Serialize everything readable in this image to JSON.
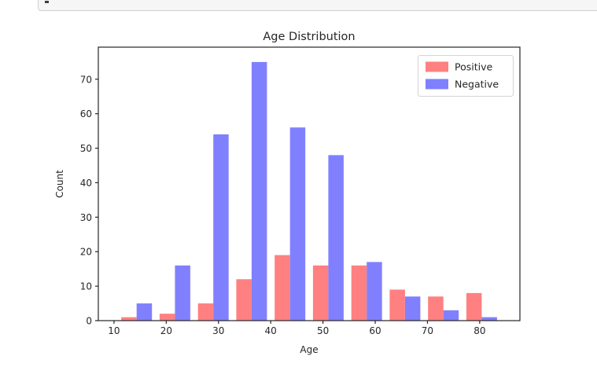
{
  "chart_data": {
    "type": "bar",
    "title": "Age Distribution",
    "xlabel": "Age",
    "ylabel": "Count",
    "bin_start": 10.66,
    "bin_width": 7.34,
    "series": [
      {
        "name": "Positive",
        "color": "#ff8080",
        "values": [
          1,
          2,
          5,
          12,
          19,
          16,
          16,
          9,
          7,
          8
        ]
      },
      {
        "name": "Negative",
        "color": "#8080ff",
        "values": [
          5,
          16,
          54,
          75,
          56,
          48,
          17,
          7,
          3,
          1
        ]
      }
    ],
    "x_ticks": [
      10,
      20,
      30,
      40,
      50,
      60,
      70,
      80
    ],
    "y_ticks": [
      0,
      10,
      20,
      30,
      40,
      50,
      60,
      70
    ],
    "xlim": [
      7.0,
      87.7
    ],
    "ylim": [
      0,
      79.3
    ],
    "legend_position": "upper right",
    "grid": false,
    "colors": {
      "spine": "#262626",
      "text": "#262626",
      "legend_border": "#d4d4d4",
      "legend_bg": "#ffffff"
    }
  }
}
